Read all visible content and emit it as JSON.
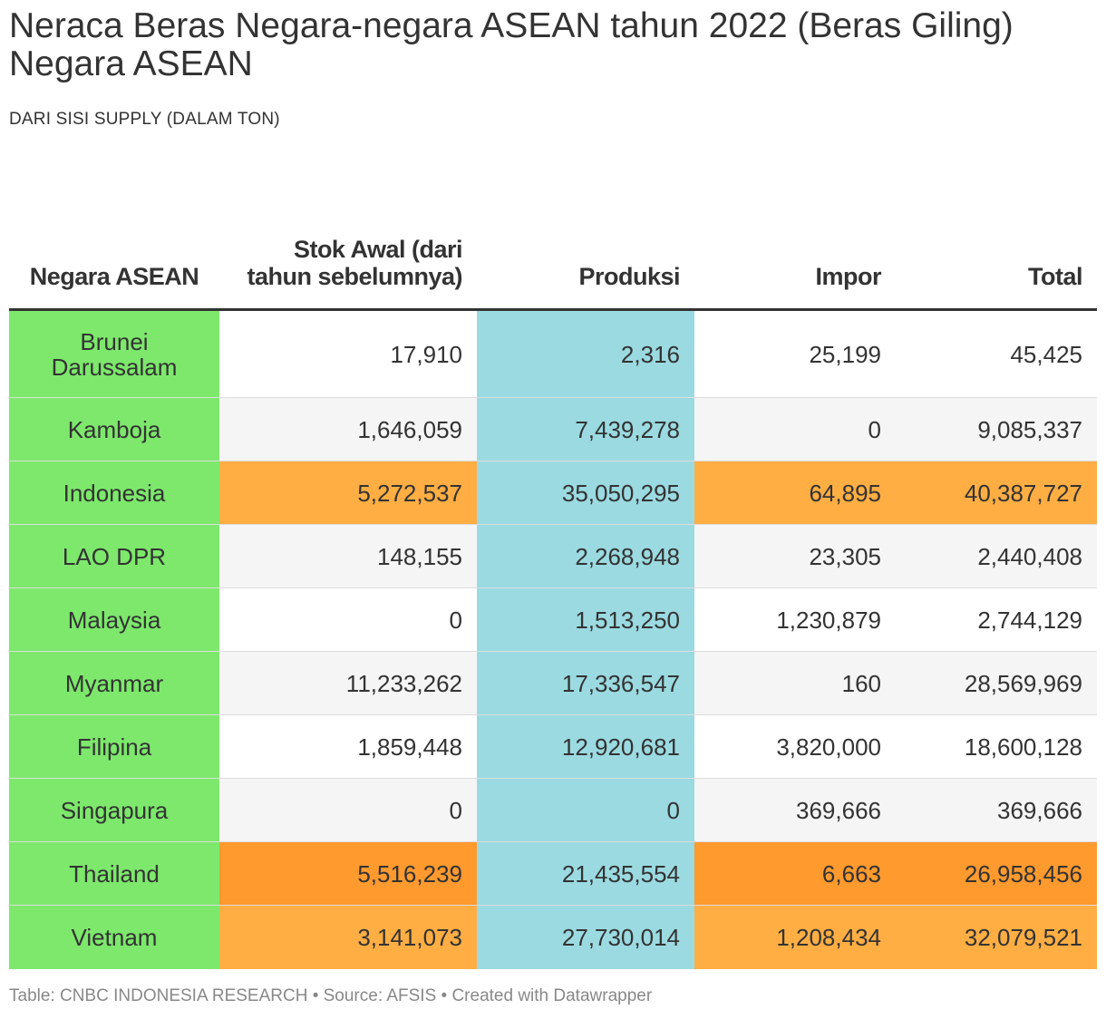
{
  "title": "Neraca Beras Negara-negara ASEAN tahun 2022 (Beras Giling) Negara ASEAN",
  "subtitle": "DARI SISI SUPPLY (DALAM TON)",
  "footer": "Table: CNBC INDONESIA RESEARCH • Source: AFSIS • Created with Datawrapper",
  "colors": {
    "country_column": "#7de86c",
    "produksi_column": "#9bdae1",
    "highlight_light": "#ffae43",
    "highlight_strong": "#ff9a2e",
    "row_alt": "#f5f5f5"
  },
  "chart_data": {
    "type": "table",
    "columns": [
      "Negara ASEAN",
      "Stok Awal (dari tahun sebelumnya)",
      "Produksi",
      "Impor",
      "Total"
    ],
    "rows": [
      {
        "country": "Brunei Darussalam",
        "stok_awal": "17,910",
        "produksi": "2,316",
        "impor": "25,199",
        "total": "45,425",
        "highlight": "none"
      },
      {
        "country": "Kamboja",
        "stok_awal": "1,646,059",
        "produksi": "7,439,278",
        "impor": "0",
        "total": "9,085,337",
        "highlight": "none"
      },
      {
        "country": "Indonesia",
        "stok_awal": "5,272,537",
        "produksi": "35,050,295",
        "impor": "64,895",
        "total": "40,387,727",
        "highlight": "light"
      },
      {
        "country": "LAO DPR",
        "stok_awal": "148,155",
        "produksi": "2,268,948",
        "impor": "23,305",
        "total": "2,440,408",
        "highlight": "none"
      },
      {
        "country": "Malaysia",
        "stok_awal": "0",
        "produksi": "1,513,250",
        "impor": "1,230,879",
        "total": "2,744,129",
        "highlight": "none"
      },
      {
        "country": "Myanmar",
        "stok_awal": "11,233,262",
        "produksi": "17,336,547",
        "impor": "160",
        "total": "28,569,969",
        "highlight": "none"
      },
      {
        "country": "Filipina",
        "stok_awal": "1,859,448",
        "produksi": "12,920,681",
        "impor": "3,820,000",
        "total": "18,600,128",
        "highlight": "none"
      },
      {
        "country": "Singapura",
        "stok_awal": "0",
        "produksi": "0",
        "impor": "369,666",
        "total": "369,666",
        "highlight": "none"
      },
      {
        "country": "Thailand",
        "stok_awal": "5,516,239",
        "produksi": "21,435,554",
        "impor": "6,663",
        "total": "26,958,456",
        "highlight": "strong"
      },
      {
        "country": "Vietnam",
        "stok_awal": "3,141,073",
        "produksi": "27,730,014",
        "impor": "1,208,434",
        "total": "32,079,521",
        "highlight": "light"
      }
    ]
  }
}
